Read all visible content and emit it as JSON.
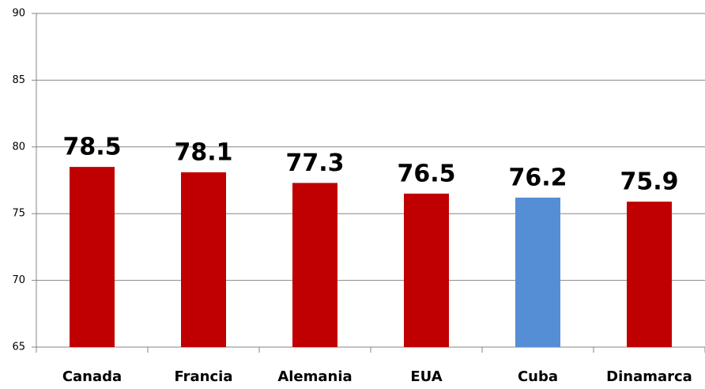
{
  "chart_data": {
    "type": "bar",
    "categories": [
      "Canada",
      "Francia",
      "Alemania",
      "EUA",
      "Cuba",
      "Dinamarca"
    ],
    "values": [
      78.5,
      78.1,
      77.3,
      76.5,
      76.2,
      75.9
    ],
    "colors": [
      "#c00000",
      "#c00000",
      "#c00000",
      "#c00000",
      "#558ed5",
      "#c00000"
    ],
    "ylim": [
      65,
      90
    ],
    "yticks": [
      65,
      70,
      75,
      80,
      85,
      90
    ],
    "grid": true
  }
}
